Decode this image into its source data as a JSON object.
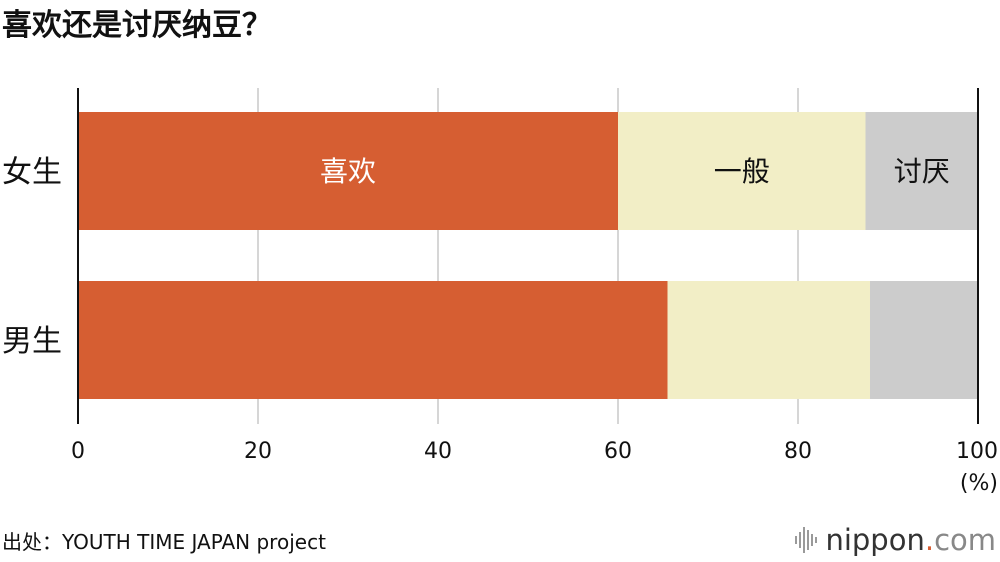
{
  "title": "喜欢还是讨厌纳豆？",
  "source": "出处：YOUTH TIME JAPAN project",
  "logo": {
    "main": "nippon",
    "dot": ".",
    "tld": "com"
  },
  "colors": {
    "like": "#d65e32",
    "neutral": "#f2eec6",
    "dislike": "#cccccc",
    "grid": "#c8c8c8",
    "axis": "#111111"
  },
  "chart_data": {
    "type": "bar",
    "orientation": "horizontal",
    "stacked": true,
    "categories": [
      "女生",
      "男生"
    ],
    "series": [
      {
        "name": "喜欢",
        "values": [
          60,
          65.5
        ]
      },
      {
        "name": "一般",
        "values": [
          27.5,
          22.5
        ]
      },
      {
        "name": "讨厌",
        "values": [
          12.5,
          12
        ]
      }
    ],
    "xlim": [
      0,
      100
    ],
    "xticks": [
      0,
      20,
      40,
      60,
      80,
      100
    ],
    "xunit": "(%)",
    "grid": true,
    "legend": "labels inside first bar"
  }
}
